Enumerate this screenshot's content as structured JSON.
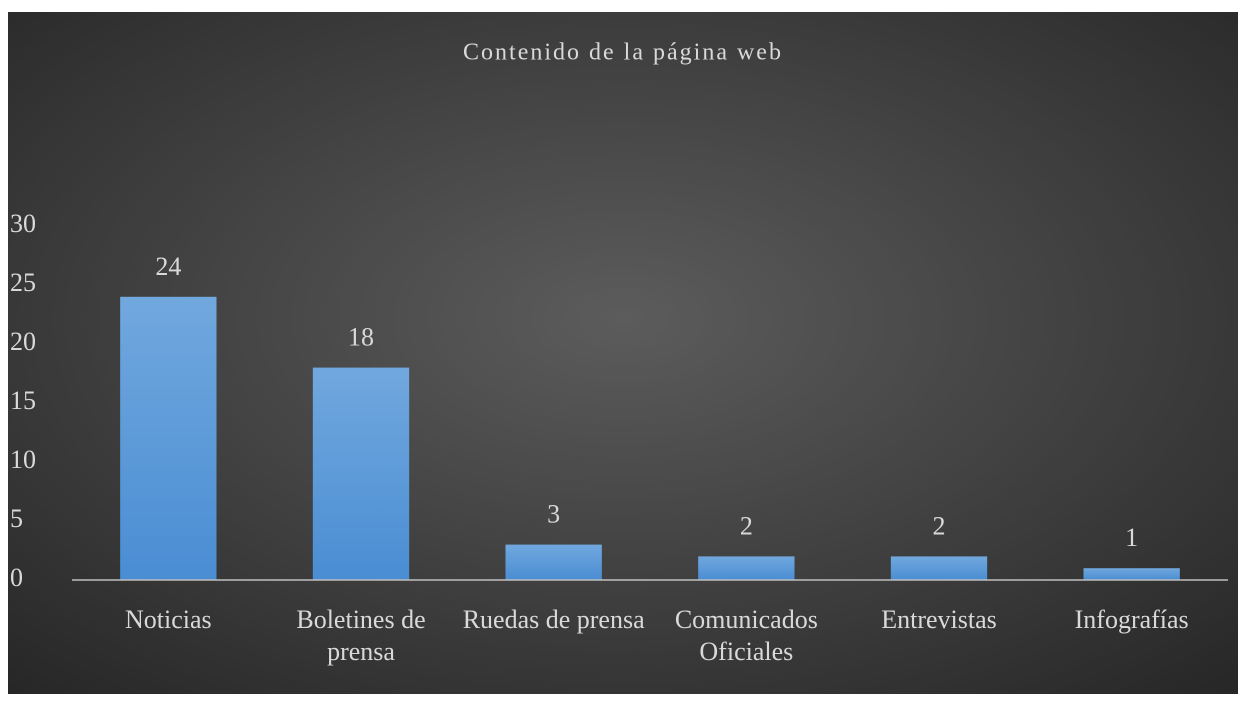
{
  "chart_data": {
    "type": "bar",
    "title": "Contenido de la página web",
    "categories": [
      "Noticias",
      "Boletines de prensa",
      "Ruedas de prensa",
      "Comunicados Oficiales",
      "Entrevistas",
      "Infografías"
    ],
    "values": [
      24,
      18,
      3,
      2,
      2,
      1
    ],
    "color": "#5b9bd5",
    "ylim": [
      0,
      30
    ],
    "yticks": [
      0,
      5,
      10,
      15,
      20,
      25,
      30
    ],
    "grid": false
  }
}
